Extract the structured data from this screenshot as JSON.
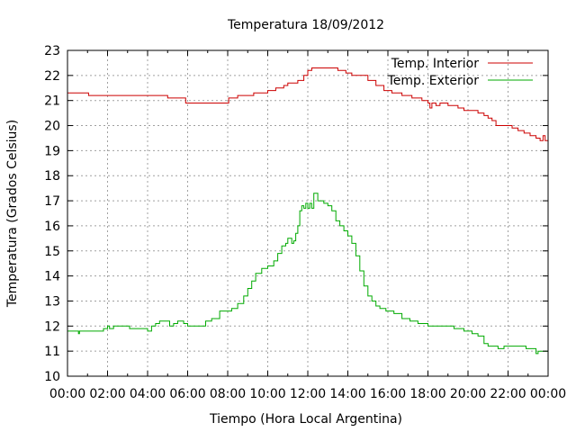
{
  "chart_data": {
    "type": "line",
    "title": "Temperatura 18/09/2012",
    "xlabel": "Tiempo (Hora Local Argentina)",
    "ylabel": "Temperatura (Grados Celsius)",
    "x_tick_labels": [
      "00:00",
      "02:00",
      "04:00",
      "06:00",
      "08:00",
      "10:00",
      "12:00",
      "14:00",
      "16:00",
      "18:00",
      "20:00",
      "22:00",
      "00:00"
    ],
    "xlim_hours": [
      0,
      24
    ],
    "ylim": [
      10,
      23
    ],
    "y_ticks": [
      10,
      11,
      12,
      13,
      14,
      15,
      16,
      17,
      18,
      19,
      20,
      21,
      22,
      23
    ],
    "grid": true,
    "legend_position": "top-right",
    "series": [
      {
        "name": "Temp. Interior",
        "color": "#cc0000",
        "points": [
          [
            0.0,
            21.3
          ],
          [
            1.0,
            21.3
          ],
          [
            1.05,
            21.2
          ],
          [
            3.0,
            21.2
          ],
          [
            4.9,
            21.2
          ],
          [
            5.0,
            21.1
          ],
          [
            5.8,
            21.1
          ],
          [
            5.9,
            20.9
          ],
          [
            7.9,
            20.9
          ],
          [
            8.05,
            21.1
          ],
          [
            8.5,
            21.2
          ],
          [
            9.2,
            21.2
          ],
          [
            9.3,
            21.3
          ],
          [
            10.0,
            21.4
          ],
          [
            10.4,
            21.5
          ],
          [
            10.8,
            21.6
          ],
          [
            11.0,
            21.7
          ],
          [
            11.5,
            21.8
          ],
          [
            11.8,
            22.0
          ],
          [
            12.0,
            22.2
          ],
          [
            12.2,
            22.3
          ],
          [
            13.2,
            22.3
          ],
          [
            13.5,
            22.2
          ],
          [
            13.9,
            22.1
          ],
          [
            14.2,
            22.0
          ],
          [
            14.8,
            22.0
          ],
          [
            15.0,
            21.8
          ],
          [
            15.4,
            21.6
          ],
          [
            15.8,
            21.4
          ],
          [
            16.2,
            21.3
          ],
          [
            16.7,
            21.2
          ],
          [
            17.2,
            21.1
          ],
          [
            17.7,
            21.0
          ],
          [
            18.0,
            20.9
          ],
          [
            18.1,
            20.7
          ],
          [
            18.2,
            20.9
          ],
          [
            18.4,
            20.8
          ],
          [
            18.6,
            20.9
          ],
          [
            19.0,
            20.8
          ],
          [
            19.5,
            20.7
          ],
          [
            19.8,
            20.6
          ],
          [
            20.3,
            20.6
          ],
          [
            20.5,
            20.5
          ],
          [
            20.8,
            20.4
          ],
          [
            21.0,
            20.3
          ],
          [
            21.2,
            20.2
          ],
          [
            21.4,
            20.0
          ],
          [
            22.0,
            20.0
          ],
          [
            22.2,
            19.9
          ],
          [
            22.5,
            19.8
          ],
          [
            22.8,
            19.7
          ],
          [
            23.1,
            19.6
          ],
          [
            23.4,
            19.5
          ],
          [
            23.6,
            19.4
          ],
          [
            23.75,
            19.6
          ],
          [
            23.85,
            19.4
          ],
          [
            24.0,
            19.4
          ],
          [
            24.02,
            19.6
          ]
        ]
      },
      {
        "name": "Temp. Exterior",
        "color": "#00aa00",
        "points": [
          [
            0.0,
            11.8
          ],
          [
            0.5,
            11.8
          ],
          [
            0.55,
            11.7
          ],
          [
            0.6,
            11.8
          ],
          [
            1.5,
            11.8
          ],
          [
            1.8,
            11.9
          ],
          [
            2.0,
            12.0
          ],
          [
            2.1,
            11.9
          ],
          [
            2.3,
            12.0
          ],
          [
            3.0,
            12.0
          ],
          [
            3.1,
            11.9
          ],
          [
            3.8,
            11.9
          ],
          [
            4.0,
            11.8
          ],
          [
            4.2,
            12.0
          ],
          [
            4.4,
            12.1
          ],
          [
            4.6,
            12.2
          ],
          [
            4.9,
            12.2
          ],
          [
            5.1,
            12.0
          ],
          [
            5.3,
            12.1
          ],
          [
            5.5,
            12.2
          ],
          [
            5.8,
            12.1
          ],
          [
            6.0,
            12.0
          ],
          [
            6.5,
            12.0
          ],
          [
            6.9,
            12.2
          ],
          [
            7.2,
            12.3
          ],
          [
            7.6,
            12.6
          ],
          [
            8.2,
            12.7
          ],
          [
            8.5,
            12.9
          ],
          [
            8.8,
            13.2
          ],
          [
            9.0,
            13.5
          ],
          [
            9.2,
            13.8
          ],
          [
            9.4,
            14.1
          ],
          [
            9.7,
            14.3
          ],
          [
            10.0,
            14.4
          ],
          [
            10.3,
            14.6
          ],
          [
            10.5,
            14.9
          ],
          [
            10.7,
            15.2
          ],
          [
            10.9,
            15.3
          ],
          [
            11.0,
            15.5
          ],
          [
            11.2,
            15.3
          ],
          [
            11.3,
            15.4
          ],
          [
            11.4,
            15.7
          ],
          [
            11.5,
            16.0
          ],
          [
            11.6,
            16.6
          ],
          [
            11.7,
            16.8
          ],
          [
            11.8,
            16.7
          ],
          [
            11.9,
            16.9
          ],
          [
            12.0,
            16.7
          ],
          [
            12.1,
            16.9
          ],
          [
            12.2,
            16.7
          ],
          [
            12.3,
            17.3
          ],
          [
            12.5,
            17.0
          ],
          [
            12.8,
            16.9
          ],
          [
            13.0,
            16.8
          ],
          [
            13.2,
            16.6
          ],
          [
            13.4,
            16.2
          ],
          [
            13.6,
            16.0
          ],
          [
            13.8,
            15.8
          ],
          [
            14.0,
            15.6
          ],
          [
            14.2,
            15.3
          ],
          [
            14.4,
            14.8
          ],
          [
            14.6,
            14.2
          ],
          [
            14.8,
            13.6
          ],
          [
            15.0,
            13.2
          ],
          [
            15.2,
            13.0
          ],
          [
            15.4,
            12.8
          ],
          [
            15.6,
            12.7
          ],
          [
            15.9,
            12.6
          ],
          [
            16.3,
            12.5
          ],
          [
            16.7,
            12.3
          ],
          [
            17.1,
            12.2
          ],
          [
            17.5,
            12.1
          ],
          [
            18.0,
            12.0
          ],
          [
            18.8,
            12.0
          ],
          [
            19.3,
            11.9
          ],
          [
            19.8,
            11.8
          ],
          [
            20.2,
            11.7
          ],
          [
            20.5,
            11.6
          ],
          [
            20.8,
            11.3
          ],
          [
            21.0,
            11.2
          ],
          [
            21.5,
            11.1
          ],
          [
            21.8,
            11.2
          ],
          [
            22.5,
            11.2
          ],
          [
            22.9,
            11.1
          ],
          [
            23.3,
            11.1
          ],
          [
            23.4,
            10.9
          ],
          [
            23.5,
            11.0
          ],
          [
            23.9,
            11.0
          ],
          [
            24.0,
            11.1
          ]
        ]
      }
    ]
  }
}
